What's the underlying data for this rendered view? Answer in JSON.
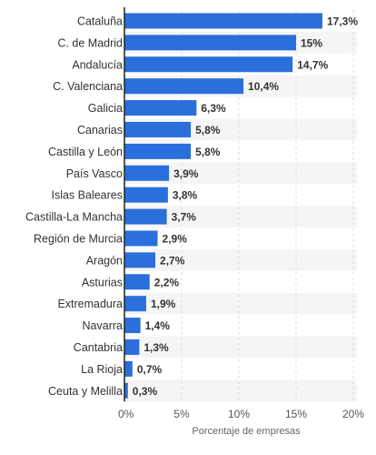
{
  "chart_data": {
    "type": "bar",
    "orientation": "horizontal",
    "categories": [
      "Cataluña",
      "C. de Madrid",
      "Andalucía",
      "C. Valenciana",
      "Galicia",
      "Canarias",
      "Castilla y León",
      "País Vasco",
      "Islas Baleares",
      "Castilla-La Mancha",
      "Región de Murcia",
      "Aragón",
      "Asturias",
      "Extremadura",
      "Navarra",
      "Cantabria",
      "La Rioja",
      "Ceuta y Melilla"
    ],
    "values": [
      17.3,
      15,
      14.7,
      10.4,
      6.3,
      5.8,
      5.8,
      3.9,
      3.8,
      3.7,
      2.9,
      2.7,
      2.2,
      1.9,
      1.4,
      1.3,
      0.7,
      0.3
    ],
    "value_labels": [
      "17,3%",
      "15%",
      "14,7%",
      "10,4%",
      "6,3%",
      "5,8%",
      "5,8%",
      "3,9%",
      "3,8%",
      "3,7%",
      "2,9%",
      "2,7%",
      "2,2%",
      "1,9%",
      "1,4%",
      "1,3%",
      "0,7%",
      "0,3%"
    ],
    "xlim": [
      0,
      20
    ],
    "xticks": [
      0,
      5,
      10,
      15,
      20
    ],
    "xtick_labels": [
      "0%",
      "5%",
      "10%",
      "15%",
      "20%"
    ],
    "xlabel": "Porcentaje de empresas",
    "ylabel": "",
    "title": "",
    "grid": true,
    "bar_color": "#2a6fdb",
    "band_color": "#f5f5f5",
    "grid_color": "#dddddd"
  }
}
